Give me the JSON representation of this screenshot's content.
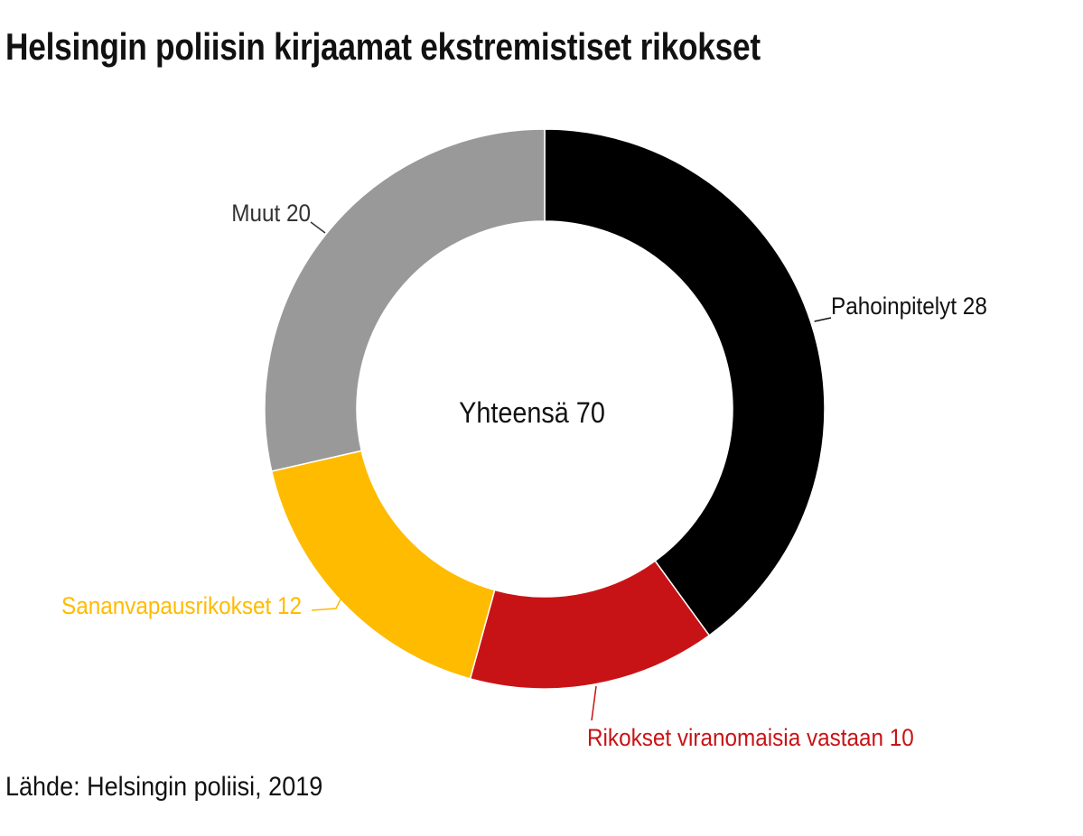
{
  "chart_data": {
    "type": "pie",
    "subtype": "donut",
    "title": "Helsingin poliisin kirjaamat ekstremistiset rikokset",
    "center_label": "Yhteensä 70",
    "total": 70,
    "slices": [
      {
        "name": "Pahoinpitelyt",
        "value": 28,
        "label": "Pahoinpitelyt 28",
        "color": "#000000"
      },
      {
        "name": "Rikokset viranomaisia vastaan",
        "value": 10,
        "label": "Rikokset viranomaisia vastaan 10",
        "color": "#c81316"
      },
      {
        "name": "Sananvapausrikokset",
        "value": 12,
        "label": "Sananvapausrikokset 12",
        "color": "#ffbb00"
      },
      {
        "name": "Muut",
        "value": 20,
        "label": "Muut 20",
        "color": "#999999"
      }
    ],
    "source": "Lähde: Helsingin poliisi, 2019"
  }
}
